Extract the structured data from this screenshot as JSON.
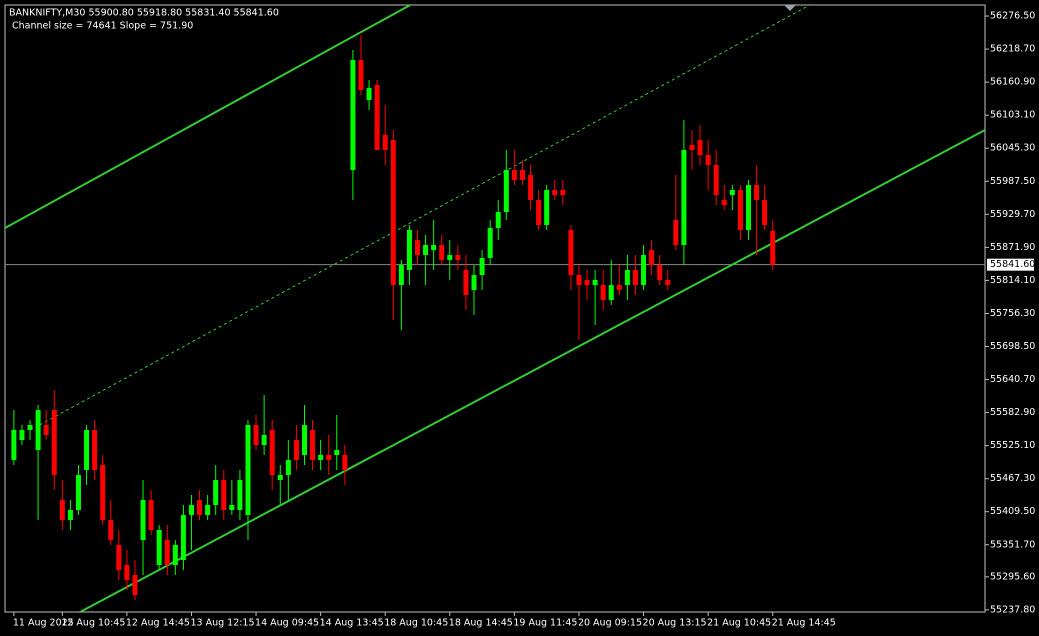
{
  "chart_data": {
    "type": "candlestick",
    "symbol_info": "BANKNIFTY,M30  55900.80 55918.80 55831.40 55841.60",
    "annotation": "Channel size = 74641 Slope = 751.90",
    "up_color": "#00ff00",
    "down_color": "#ff0000",
    "channel_color": "#32cd32",
    "current_price": {
      "value": 55841.6,
      "label": "55841.60"
    },
    "xlim": [
      -1.1,
      120.3
    ],
    "ylim": [
      55234.1,
      56295.8
    ],
    "yticks": [
      {
        "value": 56276.5,
        "label": "56276.50"
      },
      {
        "value": 56218.7,
        "label": "56218.70"
      },
      {
        "value": 56160.9,
        "label": "56160.90"
      },
      {
        "value": 56103.1,
        "label": "56103.10"
      },
      {
        "value": 56045.3,
        "label": "56045.30"
      },
      {
        "value": 55987.5,
        "label": "55987.50"
      },
      {
        "value": 55929.7,
        "label": "55929.70"
      },
      {
        "value": 55871.9,
        "label": "55871.90"
      },
      {
        "value": 55814.1,
        "label": "55814.10"
      },
      {
        "value": 55756.3,
        "label": "55756.30"
      },
      {
        "value": 55698.5,
        "label": "55698.50"
      },
      {
        "value": 55640.7,
        "label": "55640.70"
      },
      {
        "value": 55582.9,
        "label": "55582.90"
      },
      {
        "value": 55525.1,
        "label": "55525.10"
      },
      {
        "value": 55467.3,
        "label": "55467.30"
      },
      {
        "value": 55409.5,
        "label": "55409.50"
      },
      {
        "value": 55351.7,
        "label": "55351.70"
      },
      {
        "value": 55295.6,
        "label": "55295.60"
      },
      {
        "value": 55237.8,
        "label": "55237.80"
      }
    ],
    "categories": [
      "11 Aug 2025",
      null,
      null,
      null,
      null,
      null,
      "12 Aug 10:45",
      null,
      null,
      null,
      null,
      null,
      null,
      null,
      "12 Aug 14:45",
      null,
      null,
      null,
      null,
      null,
      null,
      null,
      "13 Aug 12:15",
      null,
      null,
      null,
      null,
      null,
      null,
      null,
      "14 Aug 09:45",
      null,
      null,
      null,
      null,
      null,
      null,
      null,
      "14 Aug 13:45",
      null,
      null,
      null,
      null,
      null,
      null,
      null,
      "18 Aug 10:45",
      null,
      null,
      null,
      null,
      null,
      null,
      null,
      "18 Aug 14:45",
      null,
      null,
      null,
      null,
      null,
      null,
      null,
      "19 Aug 11:45",
      null,
      null,
      null,
      null,
      null,
      null,
      null,
      "20 Aug 09:15",
      null,
      null,
      null,
      null,
      null,
      null,
      null,
      "20 Aug 13:15",
      null,
      null,
      null,
      null,
      null,
      null,
      null,
      "21 Aug 10:45",
      null,
      null,
      null,
      null,
      null,
      null,
      null,
      "21 Aug 14:45"
    ],
    "open": [
      55500.0,
      55534.9,
      55552.4,
      55517.5,
      55561.2,
      55587.4,
      55430.0,
      55395.0,
      55412.5,
      55482.5,
      55552.4,
      55491.2,
      55395.0,
      55351.3,
      55316.3,
      55298.8,
      55360.0,
      55430.0,
      55316.3,
      55360.0,
      55316.3,
      55325.0,
      55403.8,
      55430.0,
      55403.8,
      55421.3,
      55465.0,
      55412.5,
      55412.5,
      55403.8,
      55561.2,
      55526.2,
      55552.4,
      55465.0,
      55473.7,
      55534.9,
      55508.7,
      55552.4,
      55500.0,
      55508.7,
      55508.7,
      55508.7,
      56007.2,
      56199.6,
      56129.6,
      56155.8,
      56068.4,
      56059.6,
      55806.0,
      55832.3,
      55884.7,
      55858.5,
      55867.3,
      55876.0,
      55849.8,
      55858.5,
      55832.3,
      55797.3,
      55823.5,
      55853.3,
      55905.7,
      55933.7,
      56007.2,
      56007.2,
      55998.4,
      55954.7,
      55911.0,
      55972.2,
      55972.2,
      55902.2,
      55823.5,
      55814.8,
      55806.0,
      55806.0,
      55779.8,
      55806.0,
      55806.0,
      55832.3,
      55806.0,
      55867.3,
      55841.0,
      55814.8,
      55919.7,
      55876.0,
      56050.9,
      56059.6,
      56033.4,
      56015.9,
      55954.7,
      55963.4,
      55972.2,
      55902.2,
      55980.9,
      55954.7,
      55900.8
    ],
    "high": [
      55587.4,
      55561.2,
      55569.9,
      55596.2,
      55587.4,
      55622.4,
      55465.0,
      55430.0,
      55491.2,
      55561.2,
      55569.9,
      55508.7,
      55430.0,
      55377.5,
      55342.5,
      55325.0,
      55465.0,
      55447.5,
      55386.3,
      55386.3,
      55360.0,
      55421.3,
      55438.8,
      55447.5,
      55438.8,
      55491.2,
      55482.5,
      55465.0,
      55482.5,
      55569.9,
      55578.7,
      55613.6,
      55569.9,
      55491.2,
      55534.9,
      55561.2,
      55596.2,
      55569.9,
      55534.9,
      55543.7,
      55578.7,
      55526.2,
      56217.0,
      56243.3,
      56164.6,
      56164.6,
      56120.9,
      56077.1,
      55849.8,
      55911.0,
      55902.2,
      55893.5,
      55919.7,
      55893.5,
      55884.7,
      55876.0,
      55858.5,
      55841.0,
      55867.3,
      55919.7,
      55954.7,
      56042.2,
      56042.2,
      56024.7,
      56015.9,
      55972.2,
      55980.9,
      55989.7,
      55989.7,
      55911.0,
      55841.0,
      55832.3,
      55832.3,
      55832.3,
      55849.8,
      55841.0,
      55858.5,
      55858.5,
      55876.0,
      55884.7,
      55858.5,
      55832.3,
      55998.4,
      56094.6,
      56077.1,
      56085.9,
      56059.6,
      56042.2,
      55980.9,
      55980.9,
      55980.9,
      55989.7,
      56015.9,
      55980.9,
      55918.8
    ],
    "low": [
      55491.2,
      55526.2,
      55534.9,
      55395.0,
      55534.9,
      55447.5,
      55377.5,
      55377.5,
      55403.8,
      55456.2,
      55465.0,
      55386.3,
      55351.3,
      55290.0,
      55272.6,
      55255.1,
      55298.8,
      55368.8,
      55307.5,
      55298.8,
      55298.8,
      55307.5,
      55342.5,
      55395.0,
      55395.0,
      55403.8,
      55395.0,
      55403.8,
      55395.0,
      55360.0,
      55517.5,
      55508.7,
      55447.5,
      55421.3,
      55430.0,
      55482.5,
      55491.2,
      55482.5,
      55482.5,
      55473.7,
      55482.5,
      55456.2,
      55954.7,
      56138.3,
      56112.1,
      56042.2,
      56015.9,
      55744.8,
      55727.3,
      55806.0,
      55841.0,
      55806.0,
      55832.3,
      55841.0,
      55814.8,
      55832.3,
      55762.3,
      55753.6,
      55797.3,
      55841.0,
      55884.7,
      55919.7,
      55980.9,
      55980.9,
      55937.2,
      55902.2,
      55902.2,
      55954.7,
      55945.9,
      55797.3,
      55709.8,
      55779.8,
      55736.1,
      55762.3,
      55771.1,
      55788.5,
      55779.8,
      55788.5,
      55797.3,
      55823.5,
      55806.0,
      55797.3,
      55867.3,
      55841.0,
      56007.2,
      56015.9,
      55972.2,
      55945.9,
      55937.2,
      55937.2,
      55884.7,
      55884.7,
      55858.5,
      55902.2,
      55831.4
    ],
    "close": [
      55552.4,
      55552.4,
      55561.2,
      55587.4,
      55543.7,
      55473.7,
      55395.0,
      55412.5,
      55473.7,
      55552.4,
      55482.5,
      55395.0,
      55360.0,
      55307.5,
      55290.0,
      55263.8,
      55430.0,
      55377.5,
      55377.5,
      55316.3,
      55351.3,
      55403.8,
      55421.3,
      55403.8,
      55421.3,
      55465.0,
      55412.5,
      55421.3,
      55465.0,
      55561.2,
      55526.2,
      55543.7,
      55473.7,
      55473.7,
      55500.0,
      55500.0,
      55561.2,
      55500.0,
      55508.7,
      55500.0,
      55517.5,
      55482.5,
      56199.6,
      56147.1,
      56150.6,
      56042.2,
      56042.2,
      55806.0,
      55841.0,
      55902.2,
      55858.5,
      55876.0,
      55876.0,
      55849.8,
      55858.5,
      55849.8,
      55788.5,
      55823.5,
      55853.3,
      55905.7,
      55933.7,
      56007.2,
      55989.7,
      55989.7,
      55954.7,
      55911.0,
      55972.2,
      55963.4,
      55963.4,
      55823.5,
      55806.0,
      55806.0,
      55814.8,
      55779.8,
      55806.0,
      55797.3,
      55832.3,
      55806.0,
      55858.5,
      55841.0,
      55814.8,
      55806.0,
      55876.0,
      56042.2,
      56042.2,
      56033.4,
      56015.9,
      55963.4,
      55945.9,
      55972.2,
      55902.2,
      55980.9,
      55954.7,
      55911.0,
      55841.6
    ],
    "channel_lines": [
      {
        "style": "solid",
        "x": [
          8.2,
          120.3
        ],
        "y": [
          55234.1,
          56077.1
        ]
      },
      {
        "style": "solid",
        "x": [
          -1.1,
          49.1
        ],
        "y": [
          55905.7,
          56295.8
        ]
      },
      {
        "style": "dashed",
        "x": [
          3.2,
          98.6
        ],
        "y": [
          55561.2,
          56295.8
        ]
      }
    ]
  }
}
